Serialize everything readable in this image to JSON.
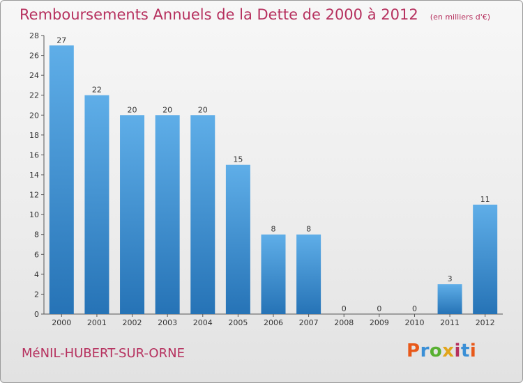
{
  "title": "Remboursements Annuels de la Dette de 2000 à 2012",
  "unit_note": "(en milliers d'€)",
  "commune": "MéNIL-HUBERT-SUR-ORNE",
  "logo": {
    "letters": [
      "P",
      "r",
      "o",
      "x",
      "i",
      "t",
      "i"
    ],
    "colors": [
      "#e8591a",
      "#3a8fd6",
      "#58b031",
      "#e2a51c",
      "#b6305e",
      "#3a8fd6",
      "#e8591a"
    ]
  },
  "colors": {
    "accent": "#b6305e",
    "bar_top": "#5faee8",
    "bar_bottom": "#2673b6"
  },
  "chart_data": {
    "type": "bar",
    "title": "Remboursements Annuels de la Dette de 2000 à 2012",
    "categories": [
      "2000",
      "2001",
      "2002",
      "2003",
      "2004",
      "2005",
      "2006",
      "2007",
      "2008",
      "2009",
      "2010",
      "2011",
      "2012"
    ],
    "values": [
      27,
      22,
      20,
      20,
      20,
      15,
      8,
      8,
      0,
      0,
      0,
      3,
      11
    ],
    "ylim": [
      0,
      28
    ],
    "yticks": [
      0,
      2,
      4,
      6,
      8,
      10,
      12,
      14,
      16,
      18,
      20,
      22,
      24,
      26,
      28
    ],
    "grid": false,
    "legend": "none"
  }
}
